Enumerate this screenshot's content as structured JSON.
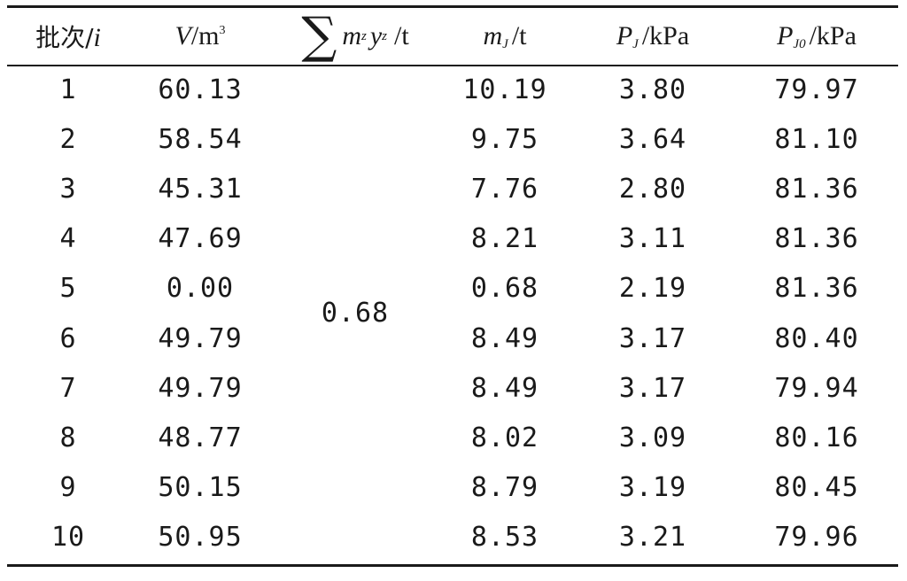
{
  "table": {
    "headers": {
      "batch": "批次/",
      "batch_var": "i",
      "volume_var": "V",
      "volume_unit": "/m",
      "volume_exp": "3",
      "sum_sigma": "∑",
      "sum_m": "m",
      "sum_m_sub": "z",
      "sum_y": "y",
      "sum_y_sub": "z",
      "sum_unit": " /t",
      "mass_var": "m",
      "mass_sub": "J",
      "mass_unit": "/t",
      "p_var": "P",
      "p_sub": "J",
      "p_unit": "/kPa",
      "p0_var": "P",
      "p0_sub": "J0",
      "p0_unit": "/kPa"
    },
    "merged_sum_value": "0.68",
    "rows": [
      {
        "batch": "1",
        "volume": "60.13",
        "mass": "10.19",
        "pj": "3.80",
        "pj0": "79.97"
      },
      {
        "batch": "2",
        "volume": "58.54",
        "mass": "9.75",
        "pj": "3.64",
        "pj0": "81.10"
      },
      {
        "batch": "3",
        "volume": "45.31",
        "mass": "7.76",
        "pj": "2.80",
        "pj0": "81.36"
      },
      {
        "batch": "4",
        "volume": "47.69",
        "mass": "8.21",
        "pj": "3.11",
        "pj0": "81.36"
      },
      {
        "batch": "5",
        "volume": "0.00",
        "mass": "0.68",
        "pj": "2.19",
        "pj0": "81.36"
      },
      {
        "batch": "6",
        "volume": "49.79",
        "mass": "8.49",
        "pj": "3.17",
        "pj0": "80.40"
      },
      {
        "batch": "7",
        "volume": "49.79",
        "mass": "8.49",
        "pj": "3.17",
        "pj0": "79.94"
      },
      {
        "batch": "8",
        "volume": "48.77",
        "mass": "8.02",
        "pj": "3.09",
        "pj0": "80.16"
      },
      {
        "batch": "9",
        "volume": "50.15",
        "mass": "8.79",
        "pj": "3.19",
        "pj0": "80.45"
      },
      {
        "batch": "10",
        "volume": "50.95",
        "mass": "8.53",
        "pj": "3.21",
        "pj0": "79.96"
      }
    ]
  }
}
